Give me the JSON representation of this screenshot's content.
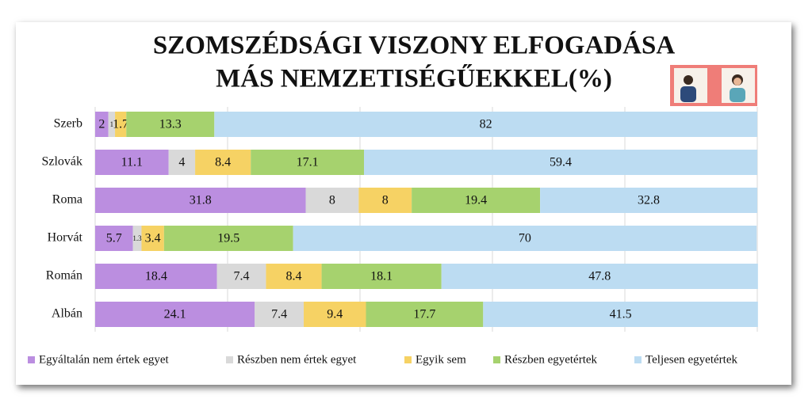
{
  "chart_data": {
    "type": "stacked-bar-horizontal",
    "title": [
      "SZOMSZÉDSÁGI VISZONY ELFOGADÁSA",
      "MÁS NEMZETISÉGŰEKKEL(%)"
    ],
    "categories": [
      "Szerb",
      "Szlovák",
      "Roma",
      "Horvát",
      "Román",
      "Albán"
    ],
    "series": [
      {
        "name": "Egyáltalán nem értek egyet",
        "color": "#bb8ee0",
        "values": [
          2,
          11.1,
          31.8,
          5.7,
          18.4,
          24.1
        ]
      },
      {
        "name": "Részben nem értek egyet",
        "color": "#d9d9d9",
        "values": [
          1,
          4,
          8,
          1.3,
          7.4,
          7.4
        ]
      },
      {
        "name": "Egyik sem",
        "color": "#f6d264",
        "values": [
          1.7,
          8.4,
          8,
          3.4,
          8.4,
          9.4
        ]
      },
      {
        "name": "Részben egyetértek",
        "color": "#a6d26e",
        "values": [
          13.3,
          17.1,
          19.4,
          19.5,
          18.1,
          17.7
        ]
      },
      {
        "name": "Teljesen egyetértek",
        "color": "#bcdcf2",
        "values": [
          82,
          59.4,
          32.8,
          70,
          47.8,
          41.5
        ]
      }
    ],
    "xlim": [
      0,
      100
    ],
    "xticks": [
      0,
      20,
      40,
      60,
      80,
      100
    ],
    "grid": true
  }
}
